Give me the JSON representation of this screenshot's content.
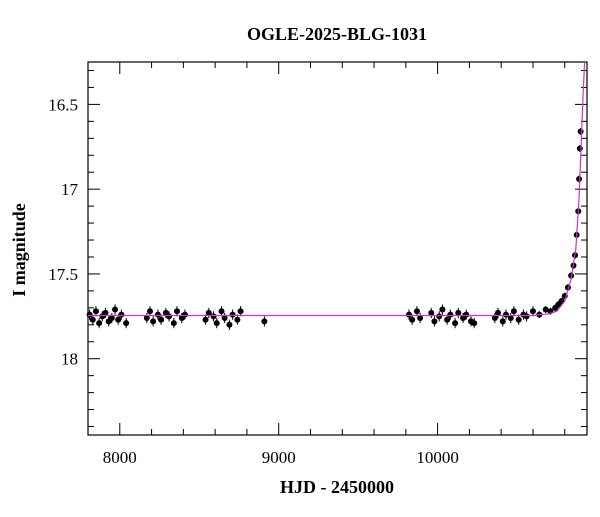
{
  "chart_data": {
    "type": "scatter",
    "title": "OGLE-2025-BLG-1031",
    "x_label": "HJD - 2450000",
    "y_label": "I magnitude",
    "xlim": [
      7800,
      10940
    ],
    "ylim": [
      18.45,
      16.25
    ],
    "xticks": [
      8000,
      9000,
      10000
    ],
    "xminorticks": [
      7800,
      8200,
      8400,
      8600,
      8800,
      9200,
      9400,
      9600,
      9800,
      10200,
      10400,
      10600,
      10800
    ],
    "yticks": [
      {
        "value": 16.5,
        "label": "16.5"
      },
      17,
      {
        "value": 17.5,
        "label": "17.5"
      },
      18
    ],
    "yminorticks": [
      16.3,
      16.4,
      16.6,
      16.7,
      16.8,
      16.9,
      17.1,
      17.2,
      17.3,
      17.4,
      17.6,
      17.7,
      17.8,
      17.9,
      18.1,
      18.2,
      18.3,
      18.4
    ],
    "series": [
      {
        "color": "#000000",
        "x": [
          7810,
          7830,
          7850,
          7870,
          7890,
          7910,
          7930,
          7950,
          7970,
          7990,
          8010,
          8040,
          8170,
          8190,
          8210,
          8240,
          8260,
          8290,
          8310,
          8340,
          8360,
          8390,
          8410,
          8540,
          8560,
          8590,
          8610,
          8640,
          8660,
          8690,
          8710,
          8740,
          8760,
          8910,
          9820,
          9840,
          9870,
          9890,
          9960,
          9980,
          10010,
          10030,
          10060,
          10080,
          10110,
          10130,
          10160,
          10180,
          10210,
          10230,
          10360,
          10380,
          10410,
          10430,
          10460,
          10480,
          10510,
          10540,
          10560,
          10600,
          10640,
          10680,
          10710,
          10740,
          10760,
          10780,
          10800,
          10820,
          10840,
          10855,
          10865,
          10875,
          10885,
          10890,
          10895,
          10900
        ],
        "values": [
          17.74,
          17.77,
          17.72,
          17.79,
          17.75,
          17.73,
          17.78,
          17.76,
          17.71,
          17.77,
          17.74,
          17.79,
          17.76,
          17.72,
          17.78,
          17.74,
          17.77,
          17.73,
          17.75,
          17.79,
          17.72,
          17.76,
          17.74,
          17.77,
          17.73,
          17.75,
          17.79,
          17.72,
          17.76,
          17.8,
          17.74,
          17.77,
          17.72,
          17.78,
          17.74,
          17.77,
          17.72,
          17.76,
          17.73,
          17.78,
          17.75,
          17.71,
          17.77,
          17.74,
          17.79,
          17.73,
          17.76,
          17.74,
          17.78,
          17.79,
          17.76,
          17.73,
          17.78,
          17.74,
          17.76,
          17.72,
          17.77,
          17.74,
          17.75,
          17.72,
          17.74,
          17.71,
          17.72,
          17.7,
          17.68,
          17.66,
          17.63,
          17.58,
          17.51,
          17.45,
          17.39,
          17.27,
          17.13,
          16.94,
          16.76,
          16.66
        ],
        "errors": [
          0.03,
          0.03,
          0.03,
          0.03,
          0.03,
          0.03,
          0.03,
          0.03,
          0.03,
          0.03,
          0.03,
          0.03,
          0.03,
          0.03,
          0.03,
          0.03,
          0.03,
          0.03,
          0.03,
          0.03,
          0.03,
          0.03,
          0.03,
          0.03,
          0.03,
          0.03,
          0.03,
          0.03,
          0.03,
          0.03,
          0.03,
          0.03,
          0.03,
          0.03,
          0.03,
          0.03,
          0.03,
          0.03,
          0.03,
          0.03,
          0.03,
          0.03,
          0.03,
          0.03,
          0.03,
          0.03,
          0.03,
          0.03,
          0.03,
          0.03,
          0.03,
          0.03,
          0.03,
          0.03,
          0.03,
          0.03,
          0.03,
          0.03,
          0.03,
          0.03,
          0.02,
          0.02,
          0.02,
          0.02,
          0.02,
          0.02,
          0.02,
          0.02,
          0.02,
          0.02,
          0.02,
          0.02,
          0.02,
          0.02,
          0.02,
          0.02
        ]
      },
      {
        "type": "line",
        "color": "#cc33cc",
        "x": [
          7800,
          10600,
          10700,
          10750,
          10800,
          10840,
          10870,
          10890,
          10905,
          10915,
          10925
        ],
        "values": [
          17.745,
          17.745,
          17.735,
          17.72,
          17.66,
          17.53,
          17.35,
          17.05,
          16.7,
          16.45,
          16.25
        ]
      }
    ]
  }
}
